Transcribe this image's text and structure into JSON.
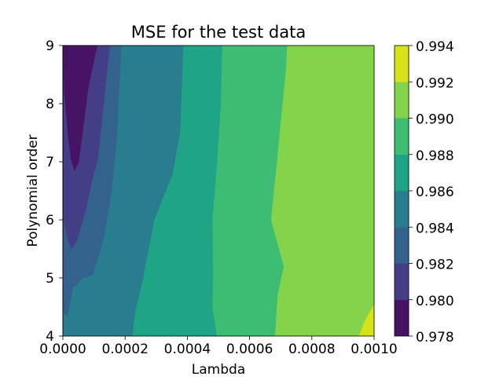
{
  "chart_data": {
    "type": "contourf",
    "title": "MSE for the test data",
    "xlabel": "Lambda",
    "ylabel": "Polynomial order",
    "xlim": [
      0.0,
      0.001
    ],
    "ylim": [
      4,
      9
    ],
    "x_ticks": [
      0.0,
      0.0002,
      0.0004,
      0.0006,
      0.0008,
      0.001
    ],
    "x_tick_labels": [
      "0.0000",
      "0.0002",
      "0.0004",
      "0.0006",
      "0.0008",
      "0.0010"
    ],
    "y_ticks": [
      4,
      5,
      6,
      7,
      8,
      9
    ],
    "y_tick_labels": [
      "4",
      "5",
      "6",
      "7",
      "8",
      "9"
    ],
    "colorbar": {
      "levels": [
        0.978,
        0.98,
        0.982,
        0.984,
        0.986,
        0.988,
        0.99,
        0.992,
        0.994
      ],
      "tick_labels": [
        "0.978",
        "0.980",
        "0.982",
        "0.984",
        "0.986",
        "0.988",
        "0.990",
        "0.992",
        "0.994"
      ],
      "colors": [
        "#440154",
        "#46327e",
        "#365c8d",
        "#277f8e",
        "#1fa187",
        "#4ac16d",
        "#a0da39",
        "#fde725"
      ],
      "band_colors": [
        "#471365",
        "#433e85",
        "#33628d",
        "#287d8e",
        "#20a486",
        "#3dbc74",
        "#84d44b",
        "#d8e219"
      ]
    },
    "contour_boundaries": [
      {
        "level": 0.98,
        "points": [
          [
            1.8e-06,
            9
          ],
          [
            5e-06,
            8.2
          ],
          [
            1.7e-05,
            7.45
          ],
          [
            2.6e-05,
            7.05
          ],
          [
            3.7e-05,
            6.85
          ],
          [
            5e-05,
            6.98
          ],
          [
            6.4e-05,
            7.55
          ],
          [
            8.2e-05,
            8.3
          ],
          [
            0.00011,
            9
          ]
        ]
      },
      {
        "level": 0.982,
        "points": [
          [
            1.8e-06,
            6.05
          ],
          [
            1.2e-05,
            5.75
          ],
          [
            2.7e-05,
            5.5
          ],
          [
            4.5e-05,
            5.65
          ],
          [
            7.2e-05,
            6.15
          ],
          [
            9.6e-05,
            6.75
          ],
          [
            0.000112,
            7.05
          ],
          [
            0.000142,
            8.6
          ],
          [
            0.000151,
            9
          ]
        ]
      },
      {
        "level": 0.984,
        "points": [
          [
            1.8e-06,
            4.4
          ],
          [
            1.5e-05,
            4.35
          ],
          [
            3.1e-05,
            4.82
          ],
          [
            6.4e-05,
            5.0
          ],
          [
            9.5e-05,
            5.05
          ],
          [
            0.000132,
            5.7
          ],
          [
            0.000156,
            6.5
          ],
          [
            0.000173,
            7.4
          ],
          [
            0.000184,
            8.7
          ],
          [
            0.000187,
            9
          ]
        ]
      },
      {
        "level": 0.986,
        "points": [
          [
            0.000223,
            4
          ],
          [
            0.000231,
            4.4
          ],
          [
            0.000257,
            5.0
          ],
          [
            0.000293,
            6.0
          ],
          [
            0.000352,
            6.8
          ],
          [
            0.000376,
            7.5
          ],
          [
            0.000382,
            8.4
          ],
          [
            0.000386,
            9
          ]
        ]
      },
      {
        "level": 0.988,
        "points": [
          [
            0.000494,
            4
          ],
          [
            0.00048,
            4.5
          ],
          [
            0.000482,
            5.05
          ],
          [
            0.00048,
            6.0
          ],
          [
            0.000495,
            7.0
          ],
          [
            0.000507,
            8.0
          ],
          [
            0.000511,
            9
          ]
        ]
      },
      {
        "level": 0.99,
        "points": [
          [
            0.000681,
            4
          ],
          [
            0.000689,
            4.7
          ],
          [
            0.000709,
            5.2
          ],
          [
            0.000668,
            6.0
          ],
          [
            0.000687,
            7.0
          ],
          [
            0.000716,
            8.6
          ],
          [
            0.00072,
            9
          ]
        ]
      },
      {
        "level": 0.992,
        "points": [
          [
            0.00095,
            4
          ],
          [
            0.000973,
            4.3
          ],
          [
            0.001,
            4.55
          ]
        ]
      }
    ]
  }
}
